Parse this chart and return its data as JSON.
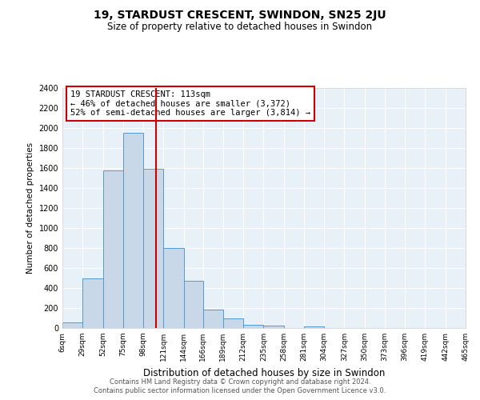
{
  "title": "19, STARDUST CRESCENT, SWINDON, SN25 2JU",
  "subtitle": "Size of property relative to detached houses in Swindon",
  "xlabel": "Distribution of detached houses by size in Swindon",
  "ylabel": "Number of detached properties",
  "bin_labels": [
    "6sqm",
    "29sqm",
    "52sqm",
    "75sqm",
    "98sqm",
    "121sqm",
    "144sqm",
    "166sqm",
    "189sqm",
    "212sqm",
    "235sqm",
    "258sqm",
    "281sqm",
    "304sqm",
    "327sqm",
    "350sqm",
    "373sqm",
    "396sqm",
    "419sqm",
    "442sqm",
    "465sqm"
  ],
  "bin_edges": [
    6,
    29,
    52,
    75,
    98,
    121,
    144,
    166,
    189,
    212,
    235,
    258,
    281,
    304,
    327,
    350,
    373,
    396,
    419,
    442,
    465
  ],
  "bar_heights": [
    55,
    500,
    1580,
    1950,
    1590,
    800,
    475,
    185,
    95,
    35,
    25,
    0,
    20,
    0,
    0,
    0,
    0,
    0,
    0,
    0
  ],
  "bar_color": "#c8d8e8",
  "bar_edgecolor": "#5599cc",
  "vline_x": 113,
  "vline_color": "#cc0000",
  "ylim": [
    0,
    2400
  ],
  "yticks": [
    0,
    200,
    400,
    600,
    800,
    1000,
    1200,
    1400,
    1600,
    1800,
    2000,
    2200,
    2400
  ],
  "annotation_box_text": "19 STARDUST CRESCENT: 113sqm\n← 46% of detached houses are smaller (3,372)\n52% of semi-detached houses are larger (3,814) →",
  "footer_line1": "Contains HM Land Registry data © Crown copyright and database right 2024.",
  "footer_line2": "Contains public sector information licensed under the Open Government Licence v3.0.",
  "background_color": "#ffffff",
  "plot_bg_color": "#e8f0f8",
  "grid_color": "#ffffff"
}
